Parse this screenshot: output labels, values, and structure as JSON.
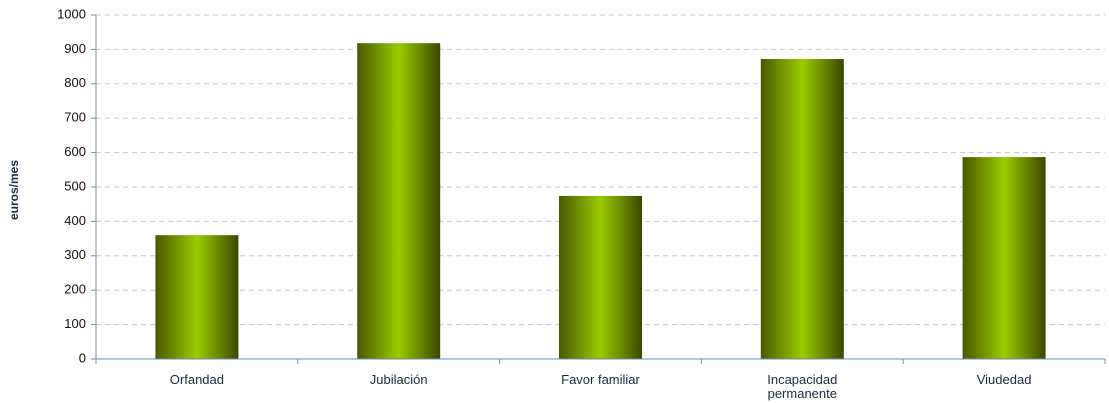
{
  "chart_data": {
    "type": "bar",
    "y_label": "euros/mes",
    "categories": [
      "Orfandad",
      "Jubilación",
      "Favor familiar",
      "Incapacidad permanente",
      "Viudedad"
    ],
    "values": [
      360,
      918,
      474,
      872,
      587
    ],
    "color": "#99cc00",
    "ylim": [
      0,
      1000
    ],
    "yticks": [
      0,
      100,
      200,
      300,
      400,
      500,
      600,
      700,
      800,
      900,
      1000
    ],
    "grid": true
  }
}
